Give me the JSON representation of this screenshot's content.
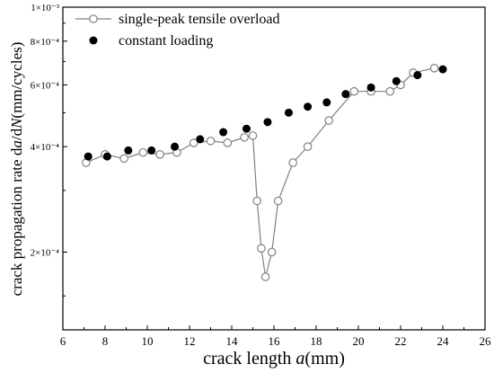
{
  "chart_data": {
    "type": "scatter",
    "xlabel_main": "crack length ",
    "xlabel_italic": "a",
    "xlabel_unit": "(mm)",
    "ylabel_main": "crack propagation rate  d",
    "ylabel_italic1": "a",
    "ylabel_sep": "/d",
    "ylabel_italic2": "N",
    "ylabel_unit": "(mm/cycles)",
    "xlim": [
      6,
      26
    ],
    "ylim": [
      0.00012,
      0.001
    ],
    "yscale": "log",
    "x_ticks": [
      6,
      8,
      10,
      12,
      14,
      16,
      18,
      20,
      22,
      24,
      26
    ],
    "x_tick_labels": [
      "6",
      "8",
      "10",
      "12",
      "14",
      "16",
      "18",
      "20",
      "22",
      "24",
      "26"
    ],
    "y_ticks": [
      {
        "value": 0.0002,
        "label": "2×10⁻⁴"
      },
      {
        "value": 0.0004,
        "label": "4×10⁻⁴"
      },
      {
        "value": 0.0006,
        "label": "6×10⁻⁴"
      },
      {
        "value": 0.0008,
        "label": "8×10⁻⁴"
      },
      {
        "value": 0.001,
        "label": "1×10⁻³"
      }
    ],
    "legend_position": "top-left",
    "series": [
      {
        "name": "single-peak tensile overload",
        "marker": "open-circle",
        "line": true,
        "color": "#808080",
        "x": [
          7.1,
          8.0,
          8.9,
          9.8,
          10.6,
          11.4,
          12.2,
          13.0,
          13.8,
          14.6,
          15.0,
          15.2,
          15.4,
          15.6,
          15.9,
          16.2,
          16.9,
          17.6,
          18.6,
          19.8,
          20.6,
          21.5,
          22.0,
          22.6,
          23.6
        ],
        "y": [
          0.00036,
          0.00038,
          0.00037,
          0.000385,
          0.00038,
          0.000385,
          0.00041,
          0.000415,
          0.00041,
          0.000425,
          0.00043,
          0.00028,
          0.000205,
          0.00017,
          0.0002,
          0.00028,
          0.00036,
          0.0004,
          0.000475,
          0.000575,
          0.000575,
          0.000575,
          0.0006,
          0.00065,
          0.00067
        ]
      },
      {
        "name": "constant loading",
        "marker": "filled-circle",
        "line": false,
        "color": "#000000",
        "x": [
          7.2,
          8.1,
          9.1,
          10.2,
          11.3,
          12.5,
          13.6,
          14.7,
          15.7,
          16.7,
          17.6,
          18.5,
          19.4,
          20.6,
          21.8,
          22.8,
          24.0
        ],
        "y": [
          0.000375,
          0.000375,
          0.00039,
          0.00039,
          0.0004,
          0.00042,
          0.00044,
          0.00045,
          0.00047,
          0.0005,
          0.00052,
          0.000535,
          0.000565,
          0.00059,
          0.000615,
          0.00064,
          0.000665
        ]
      }
    ]
  }
}
